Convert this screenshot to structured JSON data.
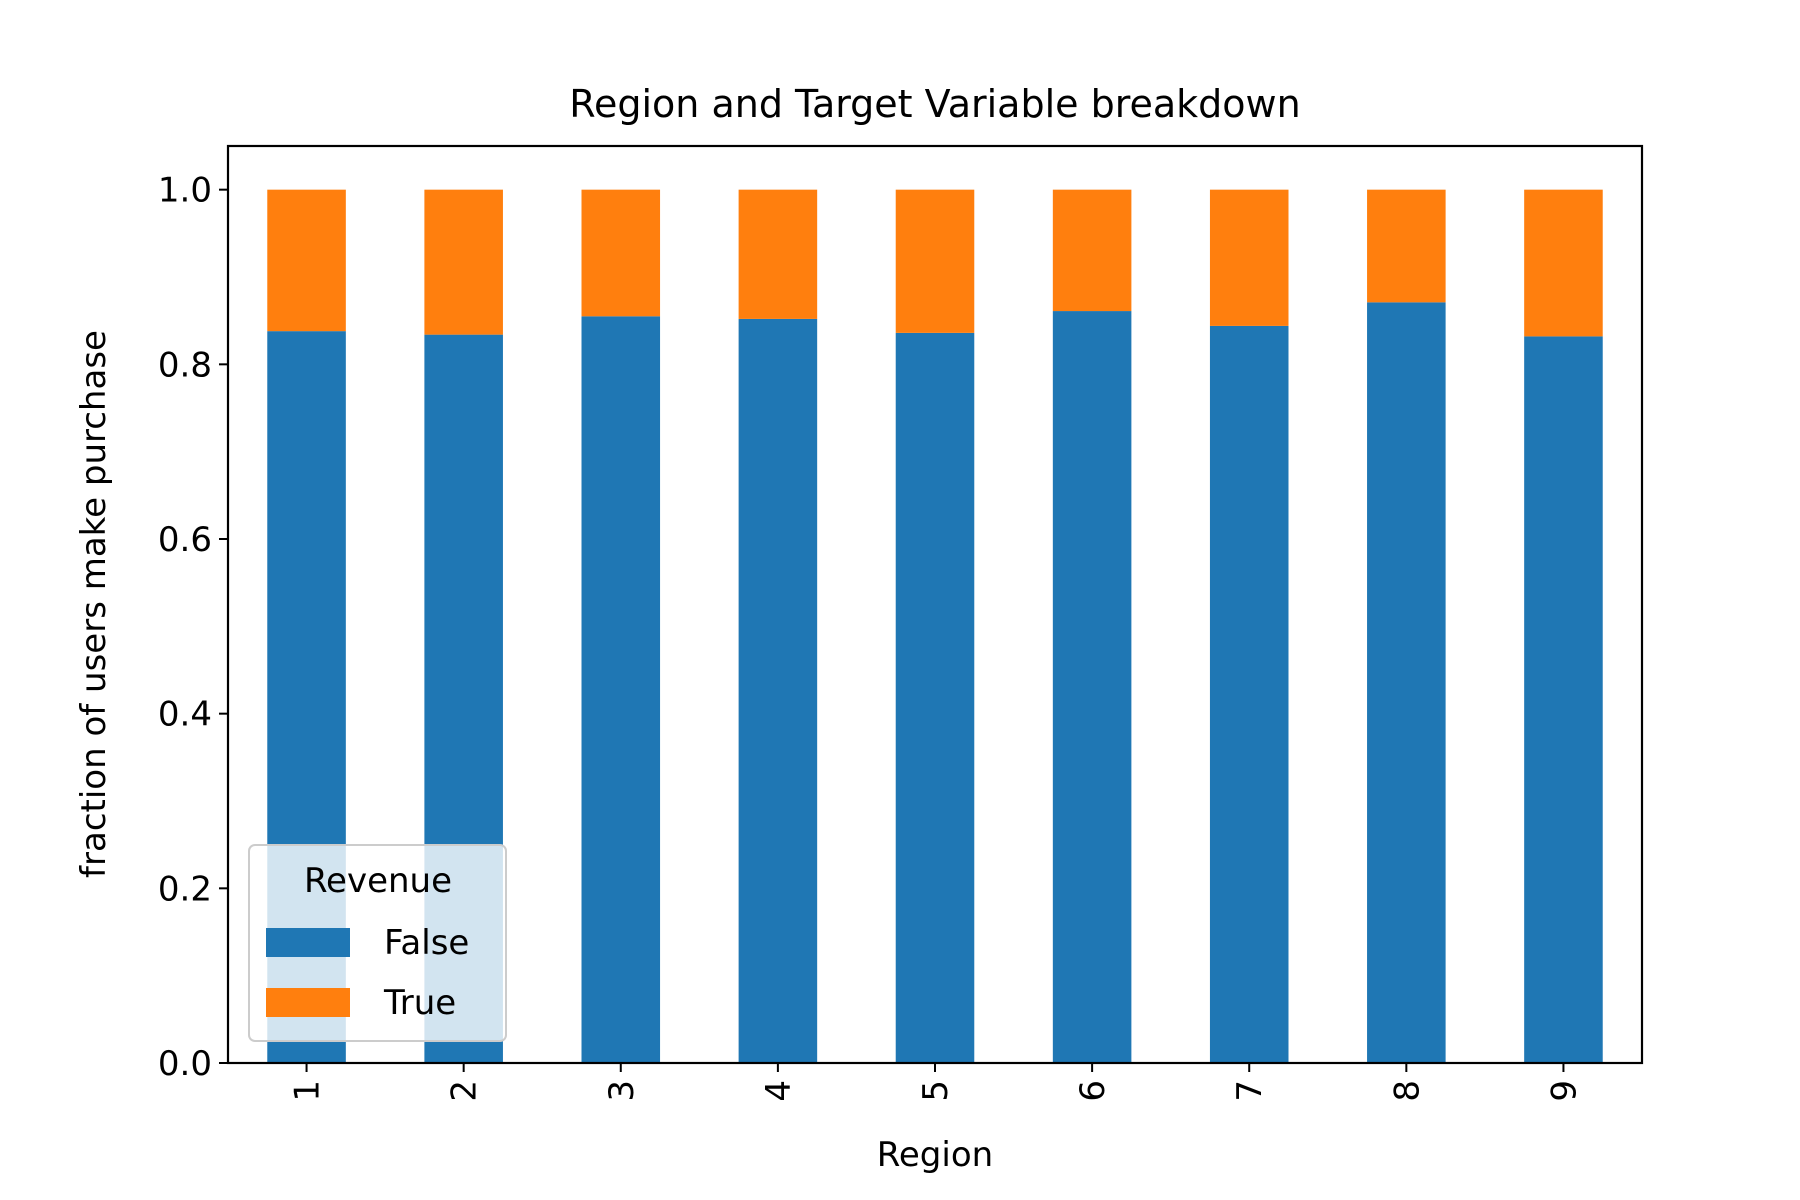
{
  "chart_data": {
    "type": "bar",
    "stacked": true,
    "title": "Region and Target Variable breakdown",
    "xlabel": "Region",
    "ylabel": "fraction of users make purchase",
    "categories": [
      "1",
      "2",
      "3",
      "4",
      "5",
      "6",
      "7",
      "8",
      "9"
    ],
    "series": [
      {
        "name": "False",
        "color": "#1f77b4",
        "values": [
          0.838,
          0.834,
          0.855,
          0.852,
          0.836,
          0.861,
          0.844,
          0.871,
          0.832
        ]
      },
      {
        "name": "True",
        "color": "#ff7f0e",
        "values": [
          0.162,
          0.166,
          0.145,
          0.148,
          0.164,
          0.139,
          0.156,
          0.129,
          0.168
        ]
      }
    ],
    "ylim": [
      0,
      1.05
    ],
    "yticks": [
      "0.0",
      "0.2",
      "0.4",
      "0.6",
      "0.8",
      "1.0"
    ],
    "legend": {
      "title": "Revenue",
      "placement": "lower-left"
    },
    "grid": false
  }
}
